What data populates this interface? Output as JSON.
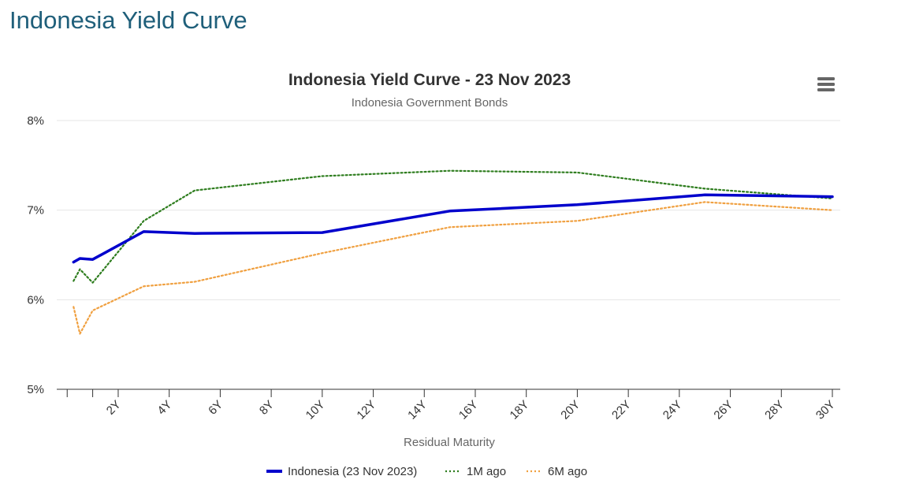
{
  "page": {
    "heading": "Indonesia Yield Curve"
  },
  "menu": {
    "icon": "hamburger-menu-icon"
  },
  "colors": {
    "heading": "#1f5f7a",
    "current": "#0000cc",
    "one_month": "#2e7d1e",
    "six_month": "#f0a040",
    "grid": "#e6e6e6",
    "axis": "#333333",
    "menu_icon": "#666666"
  },
  "chart_data": {
    "type": "line",
    "title": "Indonesia Yield Curve - 23 Nov 2023",
    "subtitle": "Indonesia Government Bonds",
    "xlabel": "Residual Maturity",
    "ylabel": "",
    "xlim": [
      -0.1,
      30
    ],
    "ylim": [
      5,
      8
    ],
    "x_ticks": [
      "2Y",
      "4Y",
      "6Y",
      "8Y",
      "10Y",
      "12Y",
      "14Y",
      "16Y",
      "18Y",
      "20Y",
      "22Y",
      "24Y",
      "26Y",
      "28Y",
      "30Y"
    ],
    "x_tick_values": [
      2,
      4,
      6,
      8,
      10,
      12,
      14,
      16,
      18,
      20,
      22,
      24,
      26,
      28,
      30
    ],
    "y_ticks": [
      "5%",
      "6%",
      "7%",
      "8%"
    ],
    "y_tick_values": [
      5,
      6,
      7,
      8
    ],
    "grid": true,
    "legend_position": "bottom-center",
    "series": [
      {
        "name": "Indonesia (23 Nov 2023)",
        "style": "solid",
        "x": [
          0.25,
          0.5,
          1,
          3,
          5,
          10,
          15,
          20,
          25,
          30
        ],
        "y": [
          6.42,
          6.46,
          6.45,
          6.76,
          6.74,
          6.75,
          6.99,
          7.06,
          7.17,
          7.15
        ]
      },
      {
        "name": "1M ago",
        "style": "dotted",
        "x": [
          0.25,
          0.5,
          1,
          3,
          5,
          10,
          15,
          20,
          25,
          30
        ],
        "y": [
          6.21,
          6.34,
          6.19,
          6.88,
          7.22,
          7.38,
          7.44,
          7.42,
          7.24,
          7.13
        ]
      },
      {
        "name": "6M ago",
        "style": "dotted",
        "x": [
          0.25,
          0.5,
          1,
          3,
          5,
          10,
          15,
          20,
          25,
          30
        ],
        "y": [
          5.92,
          5.62,
          5.88,
          6.15,
          6.2,
          6.52,
          6.81,
          6.88,
          7.09,
          7.0
        ]
      }
    ]
  }
}
